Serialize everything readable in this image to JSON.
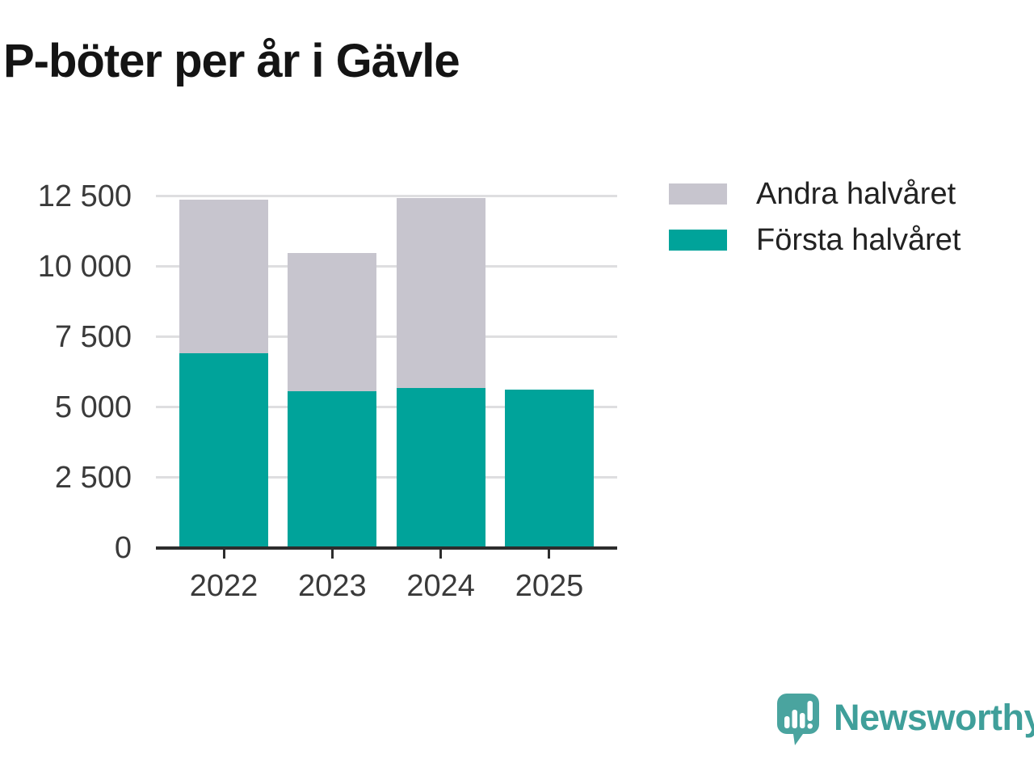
{
  "title": "P-böter per år i Gävle",
  "legend": {
    "items": [
      {
        "label": "Andra halvåret",
        "color": "#c7c5ce"
      },
      {
        "label": "Första halvåret",
        "color": "#00a39a"
      }
    ]
  },
  "chart_data": {
    "type": "bar",
    "subtype": "stacked",
    "title": "P-böter per år i Gävle",
    "categories": [
      "2022",
      "2023",
      "2024",
      "2025"
    ],
    "series": [
      {
        "name": "Första halvåret",
        "color": "#00a39a",
        "values": [
          6900,
          5550,
          5650,
          5600
        ]
      },
      {
        "name": "Andra halvåret",
        "color": "#c7c5ce",
        "values": [
          5450,
          4900,
          6750,
          0
        ]
      }
    ],
    "totals": [
      12350,
      10450,
      12400,
      5600
    ],
    "xlabel": "",
    "ylabel": "",
    "ylim": [
      0,
      12500
    ],
    "yticks": [
      {
        "value": 0,
        "label": "0"
      },
      {
        "value": 2500,
        "label": "2 500"
      },
      {
        "value": 5000,
        "label": "5 000"
      },
      {
        "value": 7500,
        "label": "7 500"
      },
      {
        "value": 10000,
        "label": "10 000"
      },
      {
        "value": 12500,
        "label": "12 500"
      }
    ],
    "grid": true,
    "legend_position": "top-right"
  },
  "branding": {
    "name": "Newsworthy",
    "color": "#3f9f9a",
    "logo": "newsworthy-logo"
  }
}
